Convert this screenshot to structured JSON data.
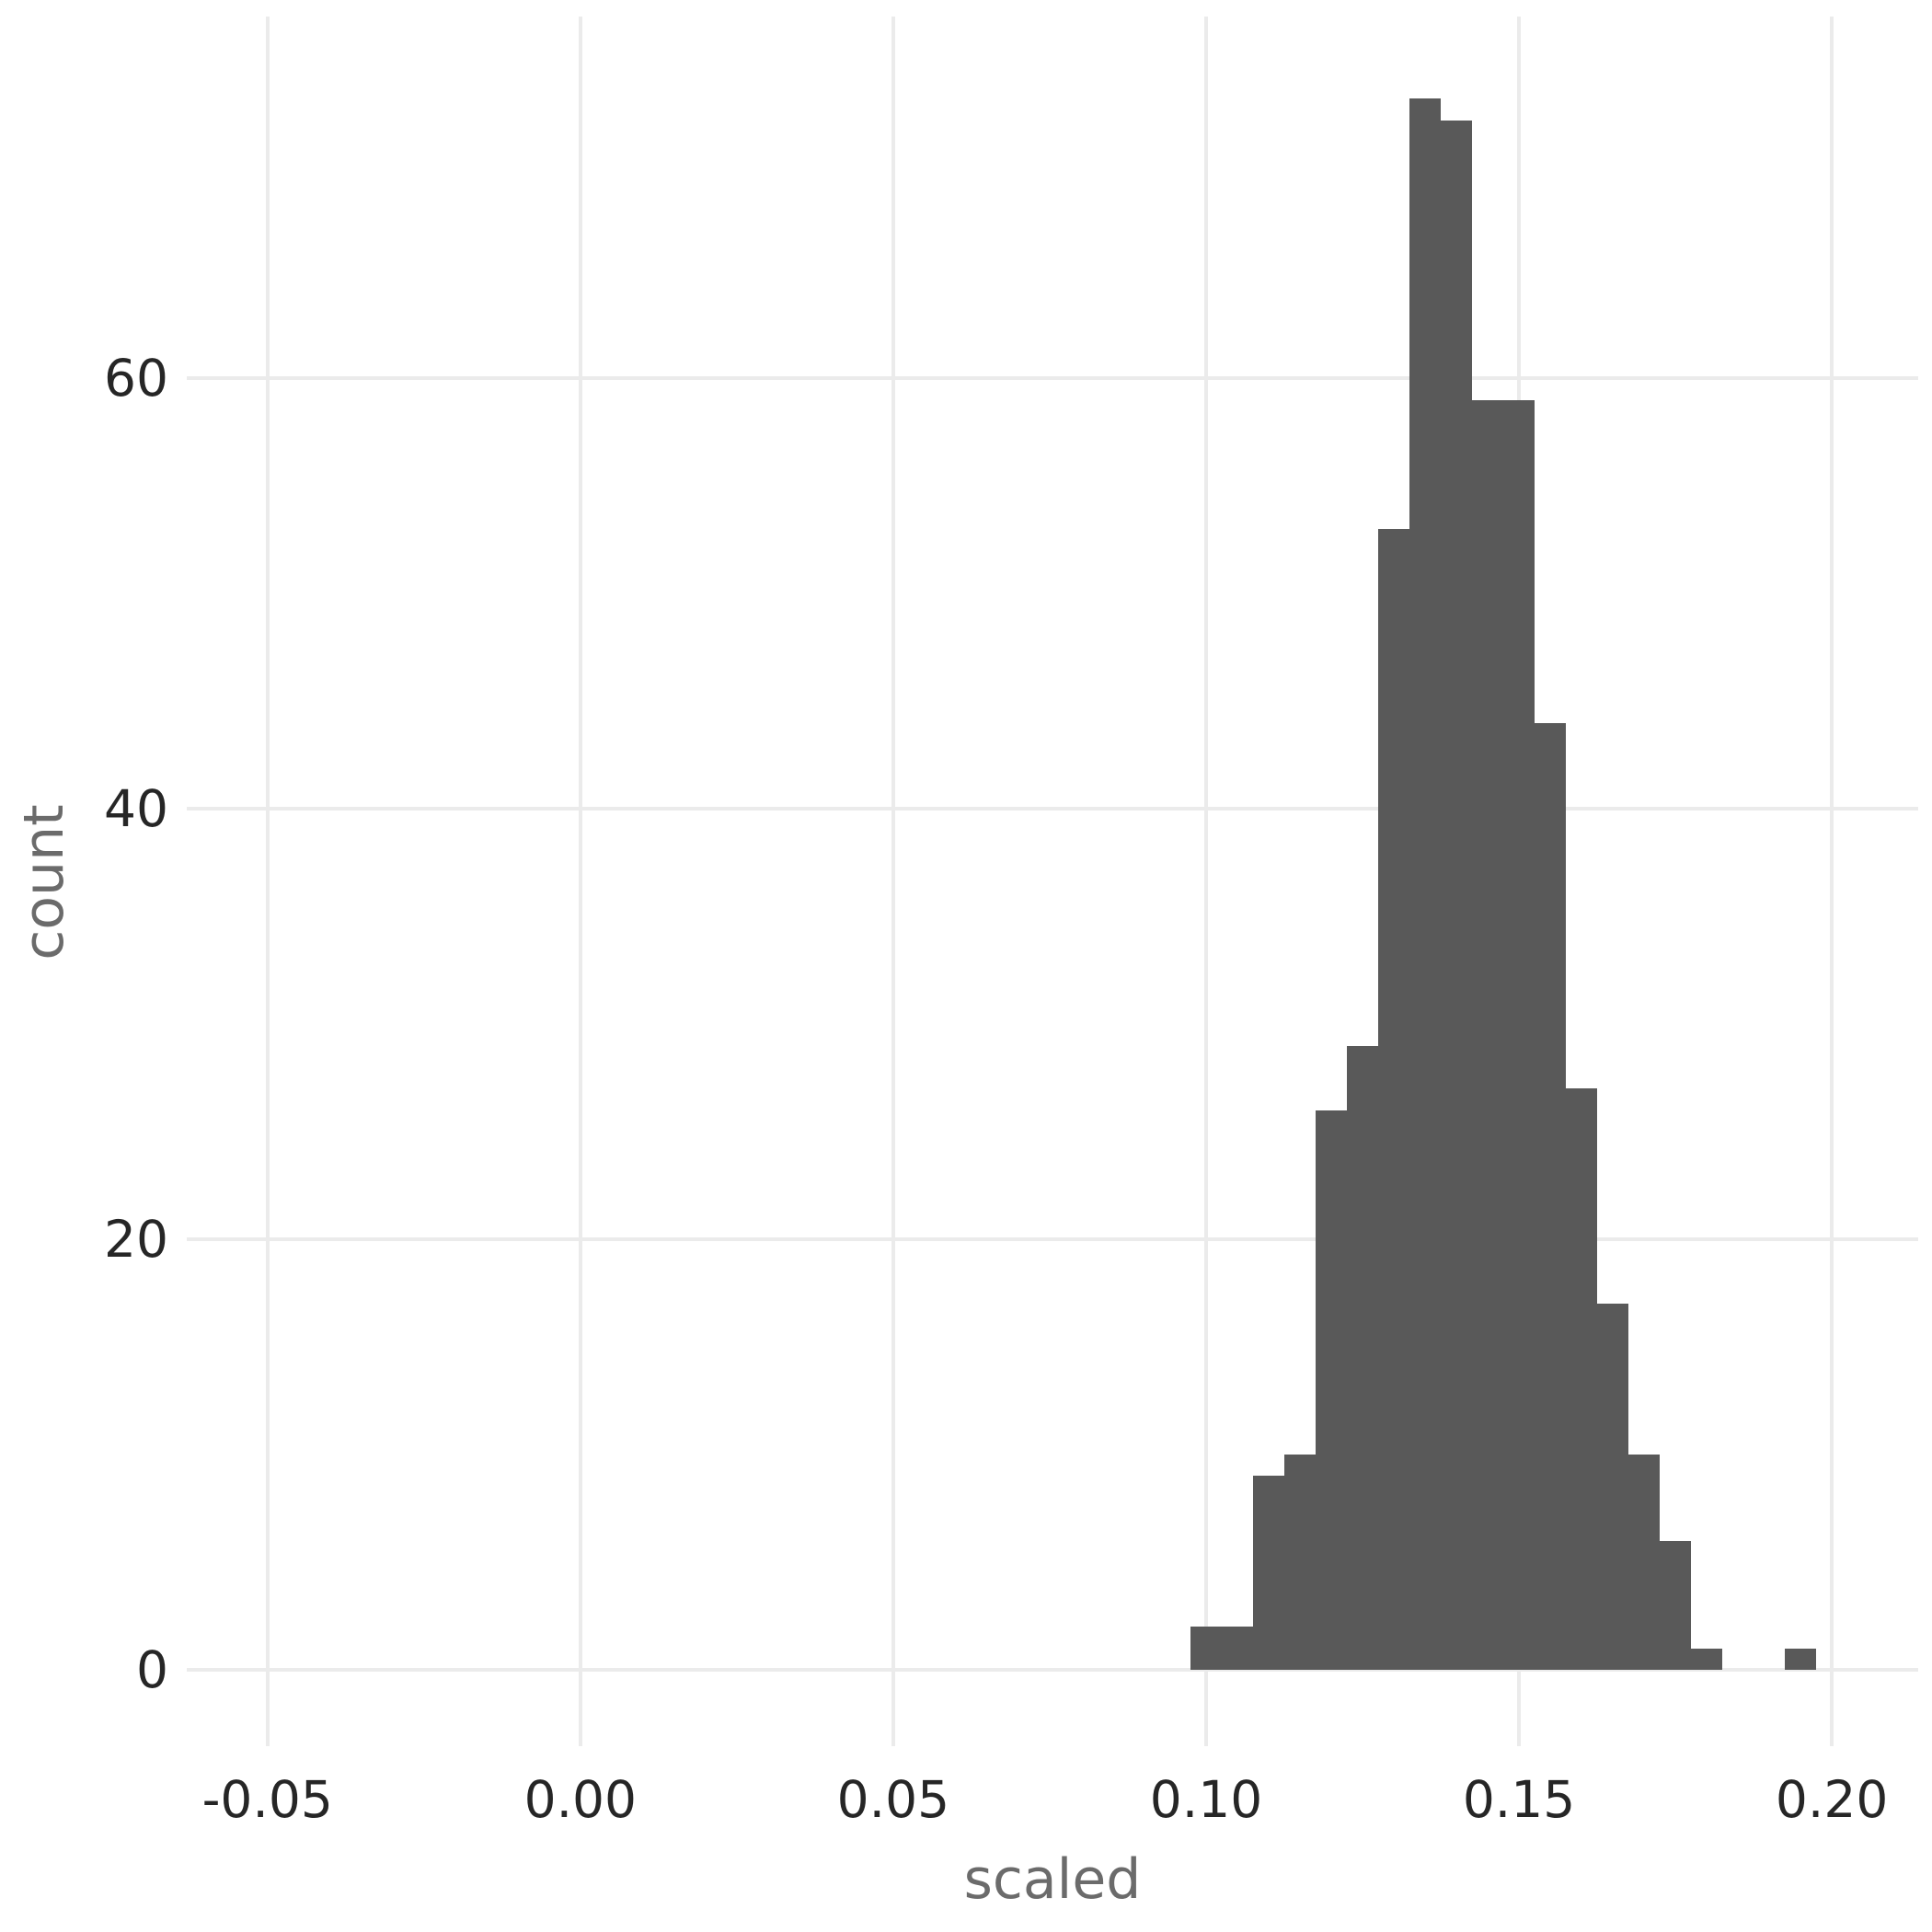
{
  "chart_data": {
    "type": "bar",
    "subtype": "histogram",
    "title": "",
    "xlabel": "scaled",
    "ylabel": "count",
    "bins": {
      "start": 0.0975,
      "width": 0.005
    },
    "counts": [
      2,
      2,
      9,
      10,
      26,
      29,
      53,
      73,
      72,
      59,
      59,
      44,
      27,
      17,
      10,
      6,
      1,
      0,
      0,
      1
    ],
    "x_ticks": [
      {
        "value": -0.05,
        "label": "-0.05"
      },
      {
        "value": 0.0,
        "label": "0.00"
      },
      {
        "value": 0.05,
        "label": "0.05"
      },
      {
        "value": 0.1,
        "label": "0.10"
      },
      {
        "value": 0.15,
        "label": "0.15"
      },
      {
        "value": 0.2,
        "label": "0.20"
      }
    ],
    "y_ticks": [
      {
        "value": 0,
        "label": "0"
      },
      {
        "value": 20,
        "label": "20"
      },
      {
        "value": 40,
        "label": "40"
      },
      {
        "value": 60,
        "label": "60"
      }
    ],
    "x_domain": [
      -0.0629,
      0.2138
    ],
    "y_domain": [
      -3.55,
      76.81
    ],
    "grid": "major-only",
    "legend": "none",
    "colors": {
      "bar": "#595959",
      "grid": "#ebebeb",
      "tick_label": "#262626",
      "axis_title": "#6b6b6b",
      "background": "#ffffff"
    }
  }
}
